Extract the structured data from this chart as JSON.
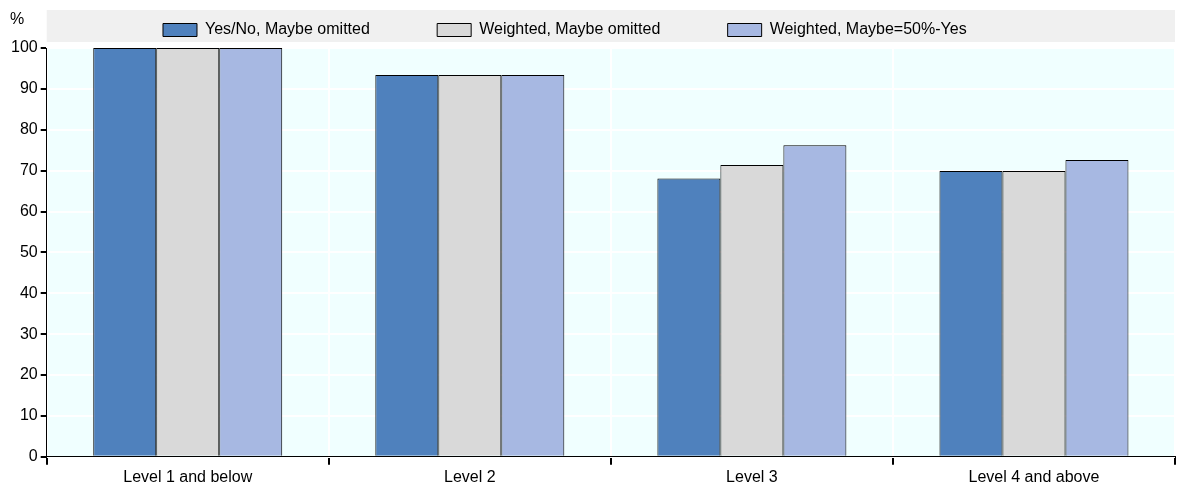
{
  "chart_data": {
    "type": "bar",
    "ylabel": "%",
    "categories": [
      "Level 1 and below",
      "Level 2",
      "Level 3",
      "Level 4 and above"
    ],
    "series": [
      {
        "name": "Yes/No, Maybe omitted",
        "color": "#4f81bd",
        "values": [
          100,
          93.4,
          68.1,
          69.9
        ]
      },
      {
        "name": "Weighted, Maybe omitted",
        "color": "#d9d9d9",
        "values": [
          100,
          93.4,
          71.4,
          69.9
        ]
      },
      {
        "name": "Weighted, Maybe=50%-Yes",
        "color": "#a7b8e2",
        "values": [
          100,
          93.4,
          76.2,
          72.6
        ]
      }
    ],
    "ylim": [
      0,
      100
    ],
    "yticks": [
      0,
      10,
      20,
      30,
      40,
      50,
      60,
      70,
      80,
      90,
      100
    ],
    "grid": true,
    "legend": "top"
  }
}
